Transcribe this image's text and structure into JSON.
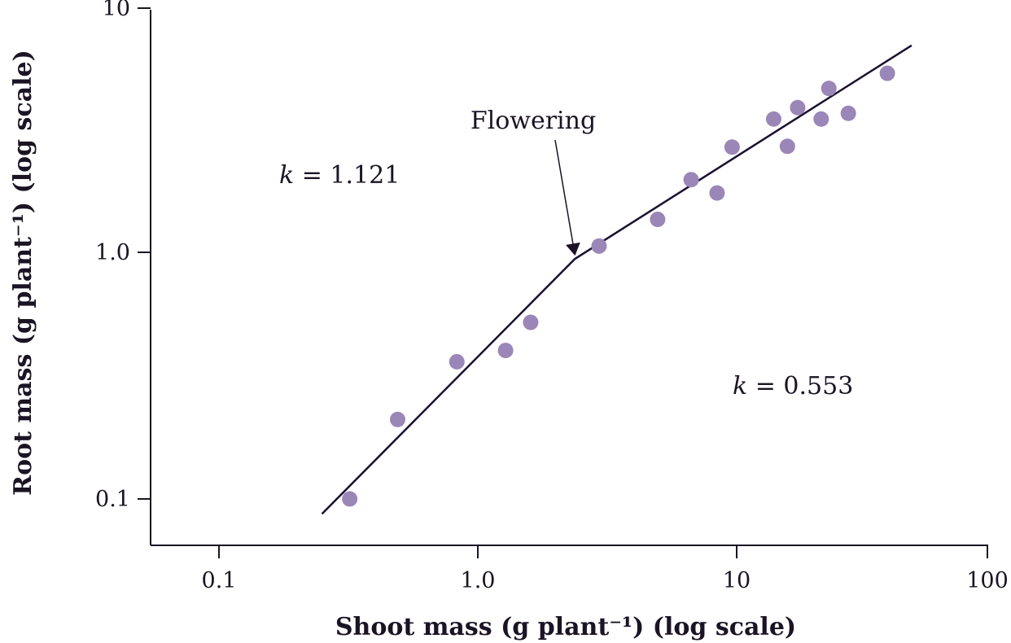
{
  "chart_data": {
    "type": "scatter",
    "xlabel": "Shoot mass (g plant⁻¹) (log scale)",
    "ylabel": "Root mass (g plant⁻¹) (log scale)",
    "x_scale": "log",
    "y_scale": "log",
    "xlim": [
      0.055,
      100
    ],
    "ylim": [
      0.06,
      10
    ],
    "x_ticks": [
      "0.1",
      "1.0",
      "10",
      "100"
    ],
    "x_tick_values": [
      0.1,
      1,
      10,
      100
    ],
    "y_ticks": [
      "0.1",
      "1.0",
      "10"
    ],
    "y_tick_values": [
      0.1,
      1,
      10
    ],
    "grid": false,
    "points": {
      "x": [
        0.32,
        0.49,
        0.83,
        1.28,
        1.6,
        2.94,
        4.95,
        6.67,
        8.4,
        9.6,
        13.9,
        15.7,
        17.2,
        21.2,
        22.7,
        27.0,
        38.2
      ],
      "y": [
        0.1,
        0.21,
        0.36,
        0.4,
        0.52,
        1.06,
        1.36,
        1.97,
        1.74,
        2.67,
        3.47,
        2.69,
        3.86,
        3.47,
        4.62,
        3.66,
        5.32
      ],
      "color": "#9b86b8"
    },
    "fit_line": {
      "x": [
        0.25,
        2.37,
        47.4
      ],
      "y": [
        0.087,
        0.94,
        6.9
      ],
      "color": "#1a1030"
    },
    "annotations": [
      {
        "text": "Flowering",
        "arrow_to": [
          2.37,
          0.98
        ]
      },
      {
        "k_label": "k",
        "value_text": " = 1.121",
        "x": 0.17,
        "y": 2.0
      },
      {
        "k_label": "k",
        "value_text": " = 0.553",
        "x": 10,
        "y": 0.3
      }
    ]
  }
}
